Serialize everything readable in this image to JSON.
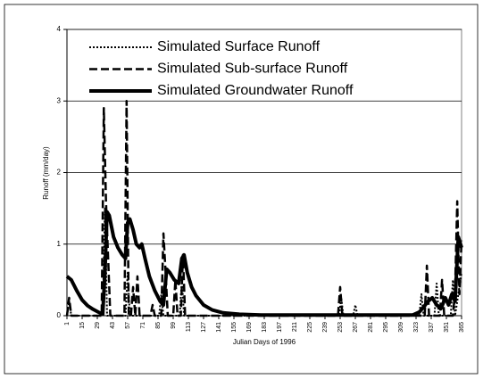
{
  "chart_data": {
    "type": "line",
    "x_label": "Julian Days of 1996",
    "y_label": "Runoff (mm/day)",
    "xlim": [
      1,
      365
    ],
    "xticks": [
      1,
      15,
      29,
      43,
      57,
      71,
      85,
      99,
      113,
      127,
      141,
      155,
      169,
      183,
      197,
      211,
      225,
      239,
      253,
      267,
      281,
      295,
      309,
      323,
      337,
      351,
      365
    ],
    "ylim": [
      0,
      4
    ],
    "yticks": [
      0,
      1,
      2,
      3,
      4
    ],
    "grid": true,
    "legend": "upper left",
    "series": [
      {
        "name": "Simulated Surface Runoff",
        "color": "#000000",
        "style": "dotted",
        "x": [
          1,
          3,
          5,
          34,
          36,
          38,
          55,
          57,
          59,
          86,
          88,
          90,
          105,
          107,
          109,
          252,
          254,
          256,
          265,
          267,
          269,
          326,
          328,
          330,
          340,
          342,
          344,
          355,
          357,
          359,
          365
        ],
        "values": [
          0,
          0.2,
          0,
          0,
          1.5,
          0,
          0,
          0.6,
          0,
          0,
          0.3,
          0,
          0,
          0.5,
          0,
          0,
          0.25,
          0,
          0,
          0.15,
          0,
          0,
          0.3,
          0,
          0,
          0.45,
          0,
          0,
          0.5,
          0,
          0.6
        ]
      },
      {
        "name": "Simulated Sub-surface Runoff",
        "color": "#000000",
        "style": "dashed",
        "x": [
          1,
          3,
          5,
          33,
          35,
          37,
          39,
          41,
          54,
          56,
          58,
          60,
          62,
          64,
          66,
          68,
          78,
          80,
          82,
          88,
          90,
          92,
          94,
          99,
          101,
          103,
          106,
          108,
          110,
          251,
          253,
          255,
          331,
          333,
          335,
          345,
          347,
          349,
          357,
          359,
          361,
          363,
          365
        ],
        "values": [
          0,
          0.25,
          0,
          0,
          2.9,
          1.6,
          0.8,
          0,
          0,
          3.0,
          0,
          0,
          0.4,
          0,
          0.55,
          0,
          0,
          0.15,
          0,
          0,
          1.15,
          0.6,
          0,
          0,
          0.5,
          0,
          0,
          0.85,
          0,
          0,
          0.4,
          0,
          0,
          0.7,
          0,
          0,
          0.5,
          0,
          0,
          0.35,
          1.6,
          0.3,
          1.05
        ]
      },
      {
        "name": "Simulated Groundwater Runoff",
        "color": "#000000",
        "style": "thick",
        "x": [
          1,
          5,
          10,
          15,
          20,
          25,
          30,
          34,
          36,
          38,
          40,
          44,
          48,
          52,
          55,
          57,
          59,
          62,
          65,
          68,
          70,
          73,
          77,
          82,
          87,
          90,
          93,
          96,
          100,
          104,
          107,
          109,
          112,
          116,
          120,
          127,
          135,
          145,
          160,
          180,
          200,
          240,
          280,
          320,
          326,
          330,
          334,
          338,
          342,
          346,
          350,
          353,
          356,
          359,
          362,
          365
        ],
        "values": [
          0.55,
          0.5,
          0.35,
          0.22,
          0.14,
          0.09,
          0.05,
          0.02,
          0.6,
          1.45,
          1.4,
          1.1,
          0.95,
          0.85,
          0.8,
          1.3,
          1.35,
          1.2,
          1.0,
          0.95,
          1.0,
          0.8,
          0.55,
          0.35,
          0.2,
          0.15,
          0.65,
          0.6,
          0.5,
          0.45,
          0.8,
          0.85,
          0.6,
          0.4,
          0.28,
          0.15,
          0.08,
          0.04,
          0.02,
          0.01,
          0.01,
          0.01,
          0.01,
          0.01,
          0.05,
          0.12,
          0.2,
          0.25,
          0.15,
          0.1,
          0.25,
          0.15,
          0.3,
          0.2,
          1.1,
          0.95
        ]
      }
    ]
  }
}
